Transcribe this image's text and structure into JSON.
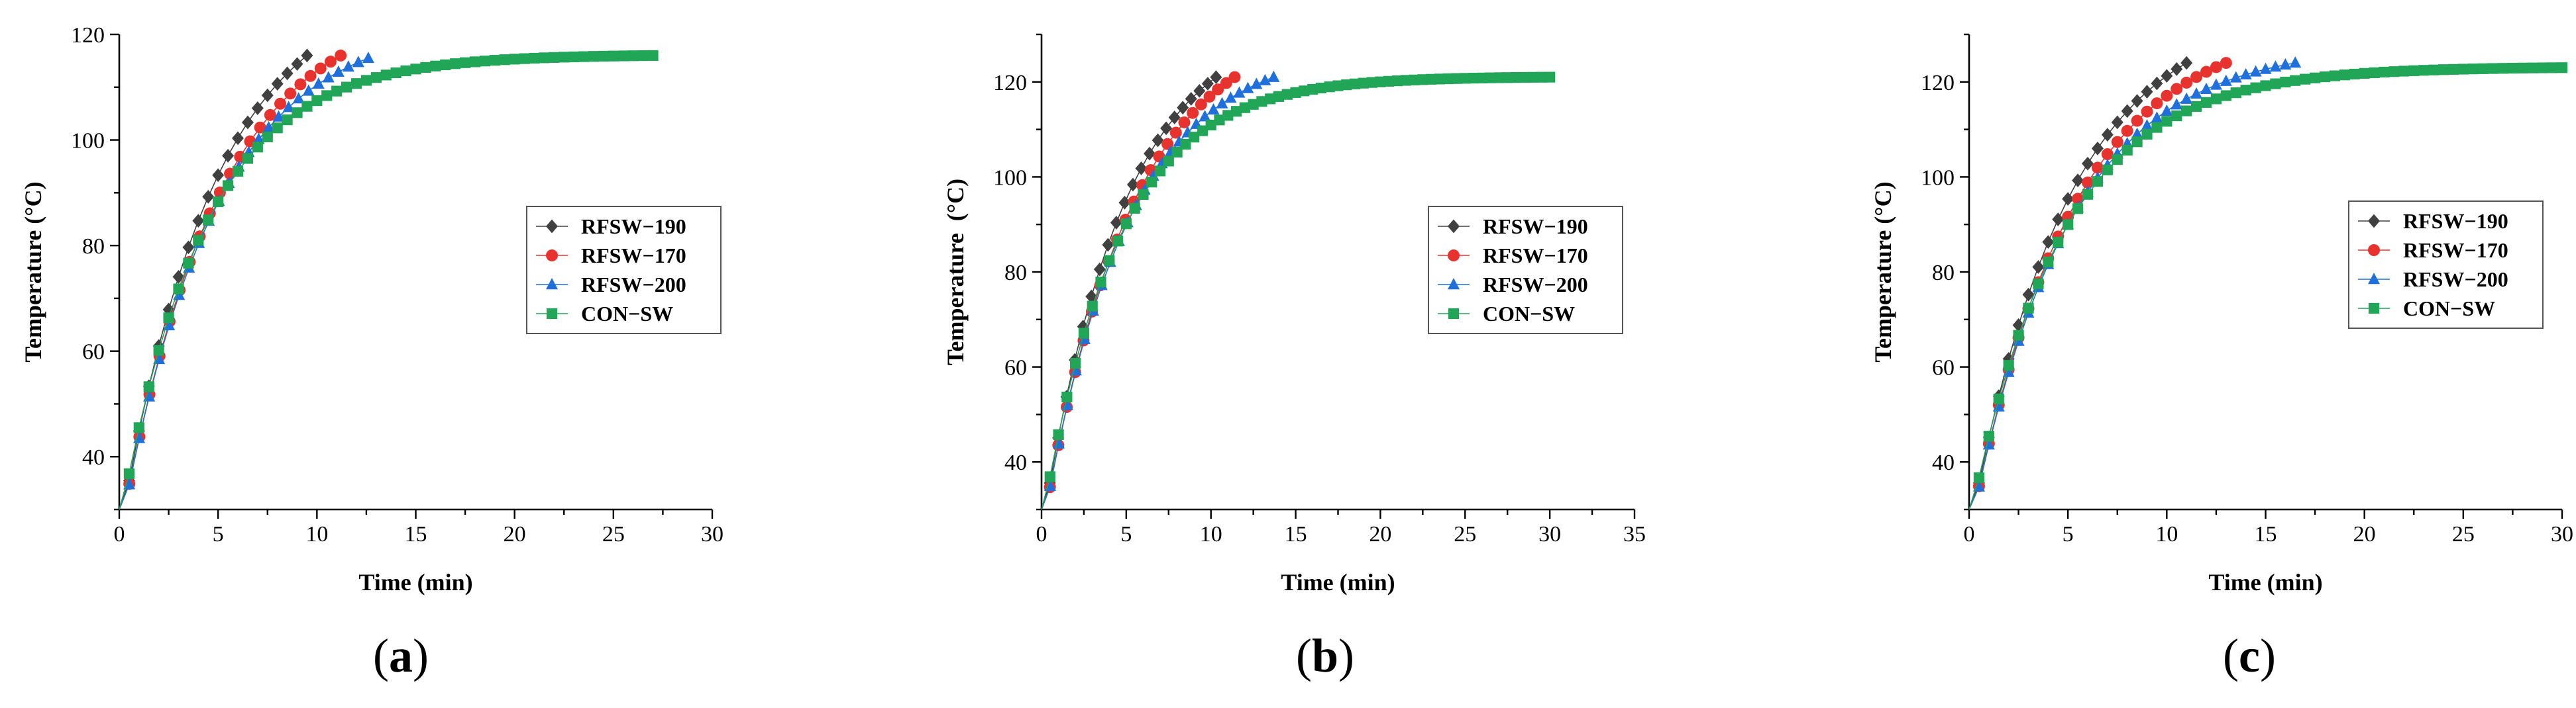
{
  "chart_data": [
    {
      "type": "scatter",
      "caption": "a",
      "title": "",
      "xlabel": "Time (min)",
      "ylabel": "Temperature (°C)",
      "xlim": [
        0,
        30
      ],
      "ylim": [
        30,
        120
      ],
      "xticks": [
        0,
        5,
        10,
        15,
        20,
        25,
        30
      ],
      "yticks": [
        40,
        60,
        80,
        100,
        120
      ],
      "legend_position": "center-right",
      "series": [
        {
          "name": "RFSW−190",
          "color": "#404040",
          "marker": "diamond",
          "tau": 4.8,
          "end_x": 9.5,
          "end_y": 116,
          "t0": 25
        },
        {
          "name": "RFSW−170",
          "color": "#e8322e",
          "marker": "circle",
          "tau": 5.0,
          "end_x": 11.2,
          "end_y": 116,
          "t0": 25
        },
        {
          "name": "RFSW−200",
          "color": "#1f6fdc",
          "marker": "triangle",
          "tau": 4.8,
          "end_x": 12.6,
          "end_y": 115.5,
          "t0": 25
        },
        {
          "name": "CON−SW",
          "color": "#21a557",
          "marker": "square",
          "tau": 4.3,
          "end_x": 27.0,
          "end_y": 116,
          "t0": 27
        }
      ]
    },
    {
      "type": "scatter",
      "caption": "b",
      "title": "",
      "xlabel": "Time (min)",
      "ylabel": "Temperature  (°C)",
      "xlim": [
        0,
        35
      ],
      "ylim": [
        30,
        130
      ],
      "xticks": [
        0,
        5,
        10,
        15,
        20,
        25,
        30,
        35
      ],
      "yticks": [
        40,
        60,
        80,
        100,
        120
      ],
      "legend_position": "center-right",
      "series": [
        {
          "name": "RFSW−190",
          "color": "#404040",
          "marker": "diamond",
          "tau": 4.8,
          "end_x": 10.3,
          "end_y": 121,
          "t0": 25
        },
        {
          "name": "RFSW−170",
          "color": "#e8322e",
          "marker": "circle",
          "tau": 5.3,
          "end_x": 11.4,
          "end_y": 121,
          "t0": 25
        },
        {
          "name": "RFSW−200",
          "color": "#1f6fdc",
          "marker": "triangle",
          "tau": 5.0,
          "end_x": 13.7,
          "end_y": 121,
          "t0": 25
        },
        {
          "name": "CON−SW",
          "color": "#21a557",
          "marker": "square",
          "tau": 4.5,
          "end_x": 30.0,
          "end_y": 121,
          "t0": 27
        }
      ]
    },
    {
      "type": "scatter",
      "caption": "c",
      "title": "",
      "xlabel": "Time (min)",
      "ylabel": "Temperature (°C)",
      "xlim": [
        0,
        30
      ],
      "ylim": [
        30,
        130
      ],
      "xticks": [
        0,
        5,
        10,
        15,
        20,
        25,
        30
      ],
      "yticks": [
        40,
        60,
        80,
        100,
        120
      ],
      "legend_position": "top-right",
      "series": [
        {
          "name": "RFSW−190",
          "color": "#404040",
          "marker": "diamond",
          "tau": 5.0,
          "end_x": 11.0,
          "end_y": 124,
          "t0": 25
        },
        {
          "name": "RFSW−170",
          "color": "#e8322e",
          "marker": "circle",
          "tau": 5.2,
          "end_x": 13.0,
          "end_y": 124,
          "t0": 25
        },
        {
          "name": "RFSW−200",
          "color": "#1f6fdc",
          "marker": "triangle",
          "tau": 5.0,
          "end_x": 16.5,
          "end_y": 124,
          "t0": 25
        },
        {
          "name": "CON−SW",
          "color": "#21a557",
          "marker": "square",
          "tau": 4.7,
          "end_x": 30.0,
          "end_y": 123,
          "t0": 27
        }
      ]
    }
  ]
}
